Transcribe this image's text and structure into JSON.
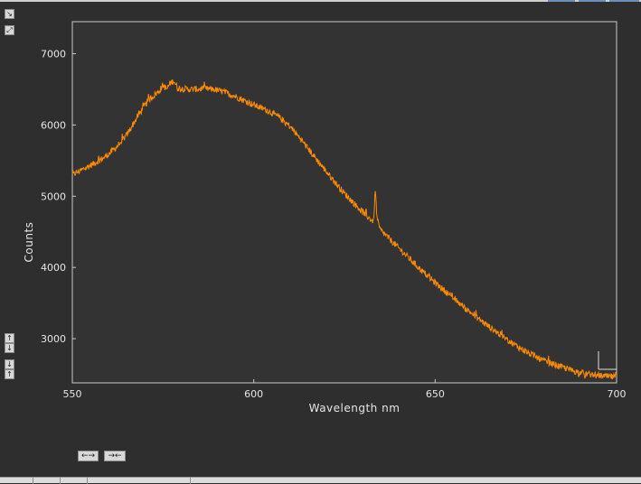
{
  "chart_data": {
    "type": "line",
    "title": "",
    "xlabel": "Wavelength nm",
    "ylabel": "Counts",
    "xlim": [
      550,
      700
    ],
    "ylim": [
      2380,
      7450
    ],
    "xticks": [
      550,
      600,
      650,
      700
    ],
    "yticks": [
      3000,
      4000,
      5000,
      6000,
      7000
    ],
    "grid": false,
    "legend": "none",
    "series": [
      {
        "color": "#ff8c00",
        "x": [
          550,
          553,
          556,
          559,
          562,
          565,
          568,
          571,
          574,
          575,
          576,
          577,
          578,
          579,
          580,
          583,
          586,
          589,
          592,
          595,
          598,
          601,
          604,
          607,
          610,
          613,
          616,
          619,
          622,
          625,
          628,
          631,
          633,
          633.5,
          634,
          634.5,
          635,
          637,
          640,
          643,
          646,
          649,
          652,
          655,
          658,
          661,
          664,
          667,
          670,
          673,
          676,
          679,
          682,
          685,
          688,
          691,
          694,
          697,
          700
        ],
        "y": [
          5300,
          5380,
          5460,
          5550,
          5680,
          5860,
          6120,
          6350,
          6480,
          6560,
          6500,
          6590,
          6620,
          6520,
          6510,
          6500,
          6510,
          6500,
          6460,
          6400,
          6330,
          6260,
          6200,
          6110,
          5980,
          5800,
          5600,
          5410,
          5220,
          5040,
          4880,
          4730,
          4640,
          5080,
          4690,
          4580,
          4520,
          4420,
          4270,
          4120,
          3970,
          3830,
          3700,
          3570,
          3440,
          3320,
          3200,
          3090,
          2980,
          2880,
          2790,
          2710,
          2650,
          2600,
          2550,
          2510,
          2490,
          2470,
          2460
        ]
      }
    ]
  }
}
